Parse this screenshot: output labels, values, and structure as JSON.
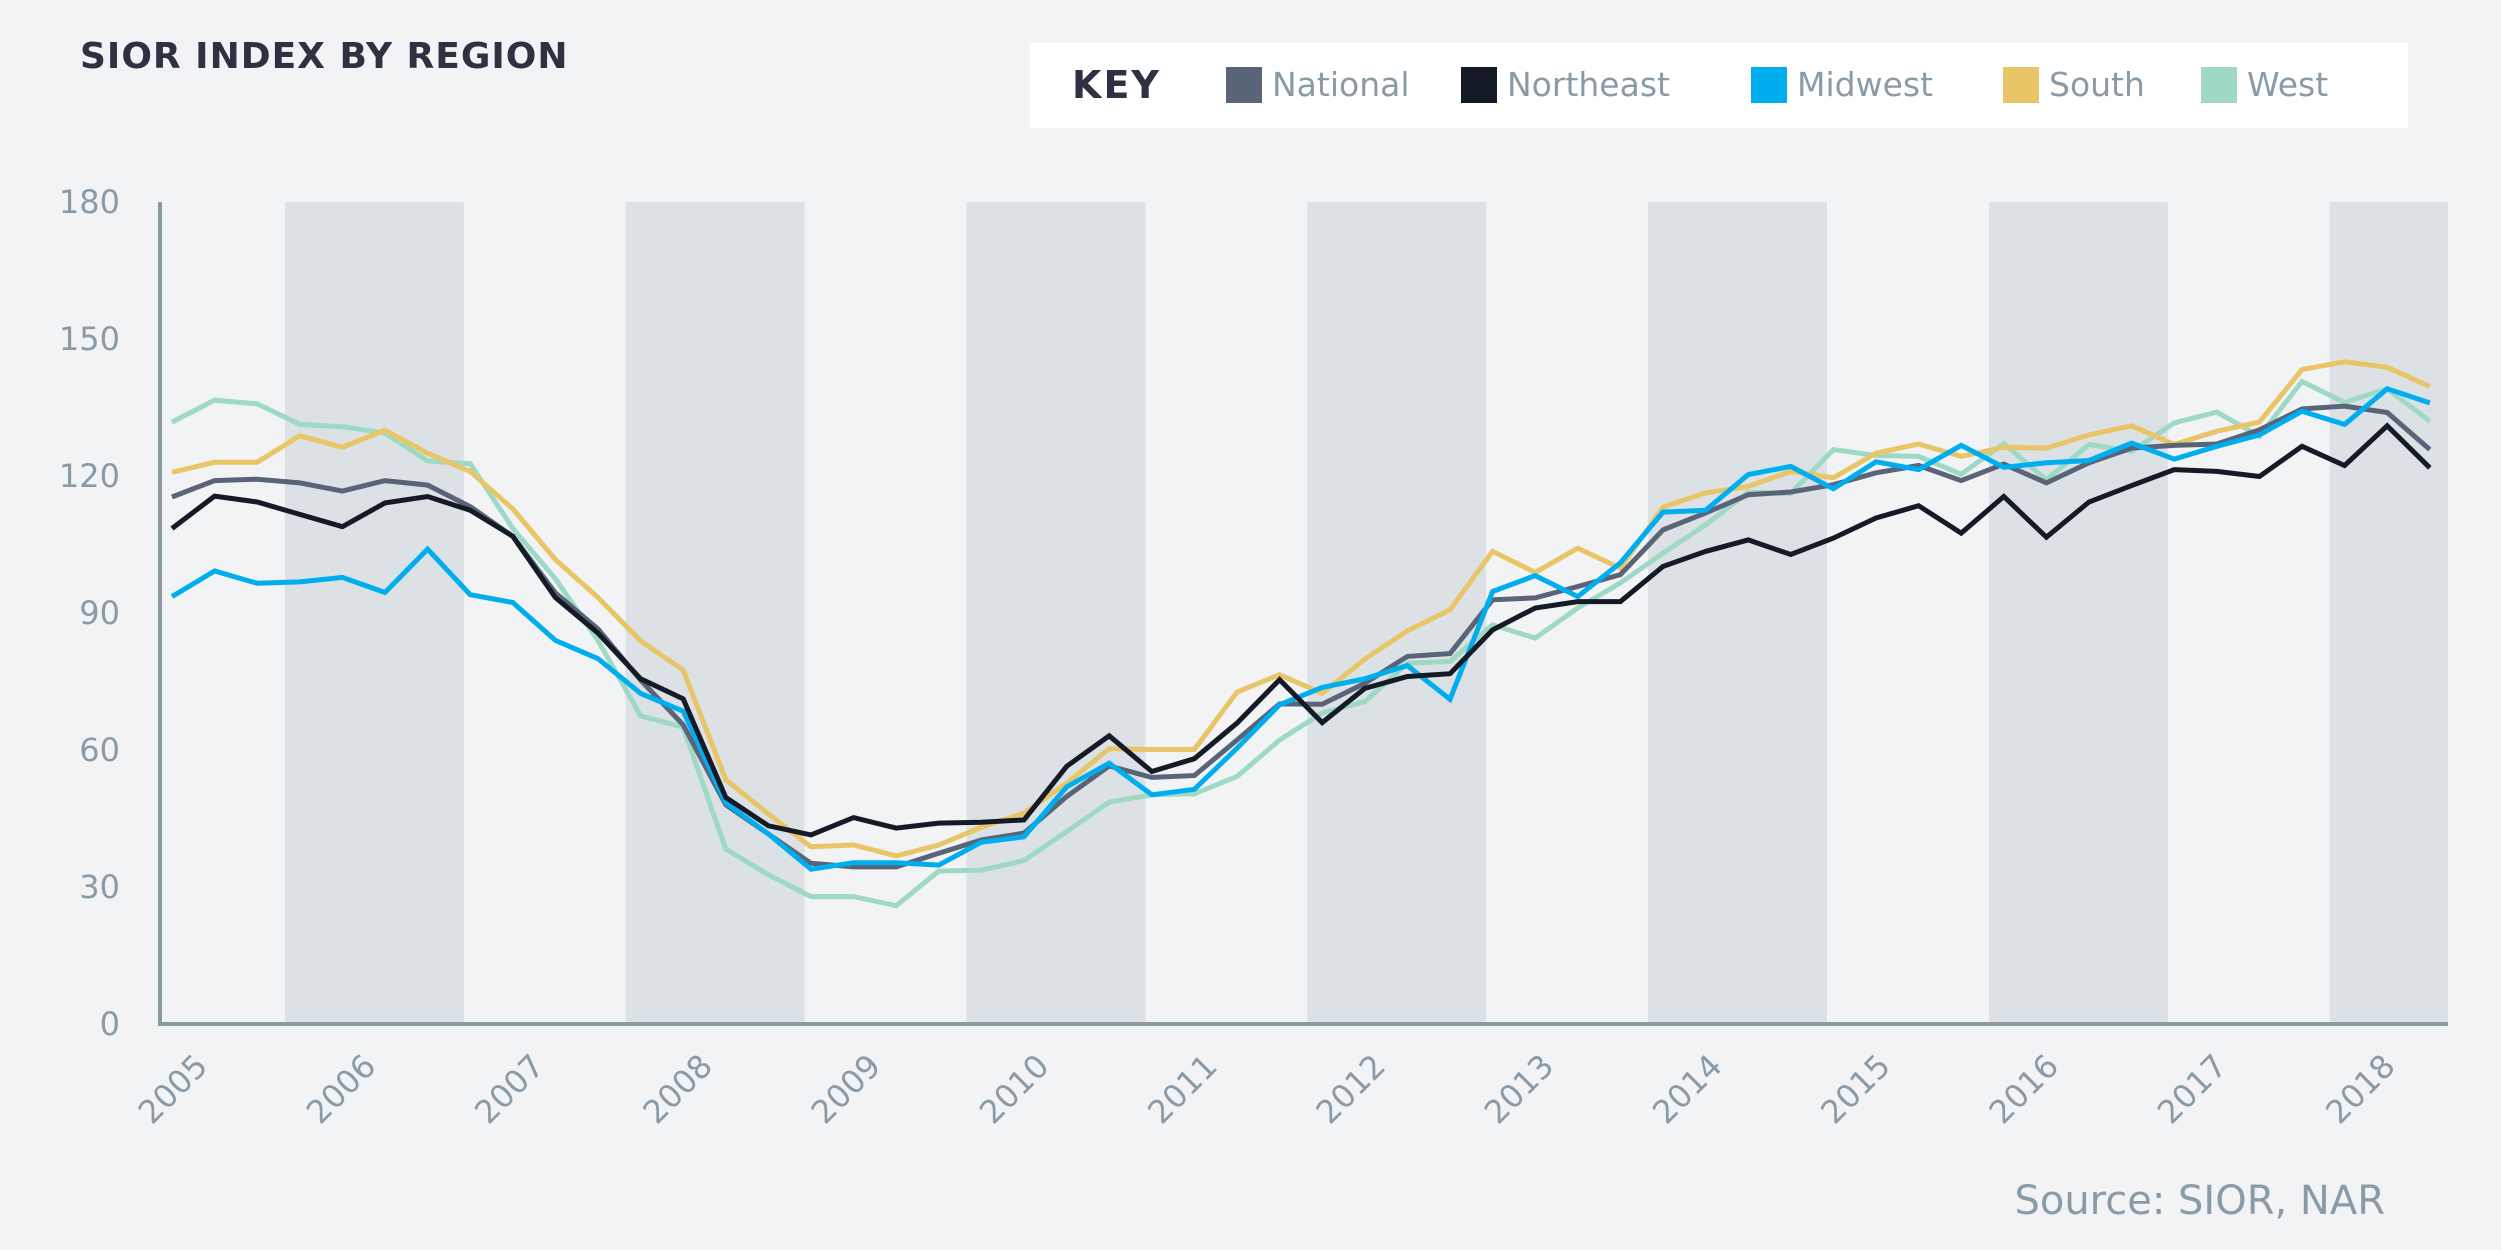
{
  "chart_data": {
    "type": "line",
    "title": "SIOR INDEX BY REGION",
    "legend_title": "KEY",
    "legend_placement": "top-right",
    "source": "Source: SIOR, NAR",
    "xlabel": "",
    "ylabel": "",
    "ylim": [
      0,
      180
    ],
    "yticks": [
      "0",
      "30",
      "60",
      "90",
      "120",
      "150",
      "180"
    ],
    "ytick_values": [
      0,
      30,
      60,
      90,
      120,
      150,
      180
    ],
    "xticks": [
      "2005",
      "2006",
      "2007",
      "2008",
      "2009",
      "2010",
      "2011",
      "2012",
      "2013",
      "2014",
      "2015",
      "2016",
      "2017",
      "2018"
    ],
    "x_period": "quarterly, 2005 Q1 – 2018 Q2",
    "shaded_years": [
      "2006",
      "2008",
      "2010",
      "2012",
      "2014",
      "2016",
      "2018"
    ],
    "grid": false,
    "series": [
      {
        "name": "National",
        "color": "#596478",
        "values": [
          115.4,
          119,
          119.3,
          118.5,
          116.7,
          119,
          118,
          113.3,
          106.8,
          94.4,
          86.5,
          75.3,
          65.5,
          48,
          41.6,
          35.2,
          34.4,
          34.4,
          37.4,
          40.3,
          41.8,
          49.8,
          56.5,
          54,
          54.4,
          62.2,
          70.1,
          70,
          74.6,
          80.5,
          81.1,
          92.9,
          93.3,
          95.8,
          98.4,
          108.2,
          111.9,
          115.9,
          116.5,
          118.1,
          120.7,
          122.3,
          119,
          122.6,
          118.5,
          122.9,
          126.1,
          126.7,
          127,
          130.1,
          134.7,
          135.3,
          133.9,
          125.8
        ]
      },
      {
        "name": "Northeast",
        "color": "#141a26",
        "values": [
          108.5,
          115.6,
          114.3,
          111.6,
          108.9,
          114.1,
          115.5,
          112.5,
          106.8,
          93.4,
          85.6,
          75.6,
          71.2,
          49.6,
          43.4,
          41.4,
          45.2,
          42.9,
          44,
          44.2,
          44.7,
          56.4,
          63.1,
          55.3,
          58.1,
          65.9,
          75.4,
          66,
          73.5,
          76.1,
          76.7,
          86.3,
          91.1,
          92.5,
          92.5,
          100.2,
          103.5,
          106,
          102.8,
          106.4,
          110.8,
          113.5,
          107.5,
          115.5,
          106.6,
          114.3,
          117.9,
          121.4,
          121,
          119.9,
          126.5,
          122.3,
          131,
          121.8
        ]
      },
      {
        "name": "Midwest",
        "color": "#00aeef",
        "values": [
          93.6,
          99.2,
          96.5,
          96.8,
          97.8,
          94.5,
          104,
          94,
          92.3,
          84,
          80,
          72.4,
          68.5,
          48.4,
          41.6,
          33.9,
          35.3,
          35.3,
          34.8,
          39.8,
          41,
          51.9,
          57.1,
          50.2,
          51.4,
          60.4,
          69.9,
          73.7,
          75.6,
          78.5,
          71.1,
          94.7,
          98.2,
          93.6,
          101,
          112.1,
          112.5,
          120.3,
          122.1,
          117.2,
          123.1,
          121.4,
          126.7,
          121.9,
          122.9,
          123.4,
          127.2,
          123.7,
          126.5,
          129,
          134.2,
          131.3,
          139.1,
          136
        ]
      },
      {
        "name": "South",
        "color": "#e8c566",
        "values": [
          120.8,
          123,
          123,
          128.8,
          126.3,
          130,
          125,
          121,
          112.8,
          101.7,
          93.4,
          83.9,
          77.5,
          53.5,
          46,
          38.8,
          39.2,
          36.8,
          39.2,
          43.1,
          46.2,
          52.7,
          60.3,
          60.1,
          60.1,
          72.7,
          76.5,
          72.4,
          79.9,
          86.1,
          90.7,
          103.5,
          98.9,
          104.2,
          99.8,
          113.2,
          116.3,
          117.7,
          121,
          119.6,
          125,
          127,
          124.3,
          126.3,
          126.1,
          129,
          131,
          126.9,
          129.8,
          131.8,
          143.3,
          145,
          143.8,
          139.6
        ]
      },
      {
        "name": "West",
        "color": "#9dd9c5",
        "values": [
          131.8,
          136.6,
          135.8,
          131.3,
          130.8,
          129.4,
          123.3,
          122.7,
          108.5,
          97.5,
          84,
          67.5,
          65,
          38.3,
          32.7,
          27.9,
          27.9,
          25.9,
          33.5,
          33.7,
          35.8,
          42.1,
          48.6,
          50.2,
          50.4,
          54.2,
          62.2,
          68.1,
          70.6,
          79,
          79.4,
          87.4,
          84.5,
          91.1,
          96.6,
          103.1,
          109.3,
          116.4,
          116.2,
          125.8,
          124.5,
          124.3,
          120.4,
          127.1,
          119.2,
          126.9,
          125.4,
          131.6,
          134,
          128.7,
          140.7,
          136.1,
          139.1,
          132
        ]
      }
    ]
  }
}
